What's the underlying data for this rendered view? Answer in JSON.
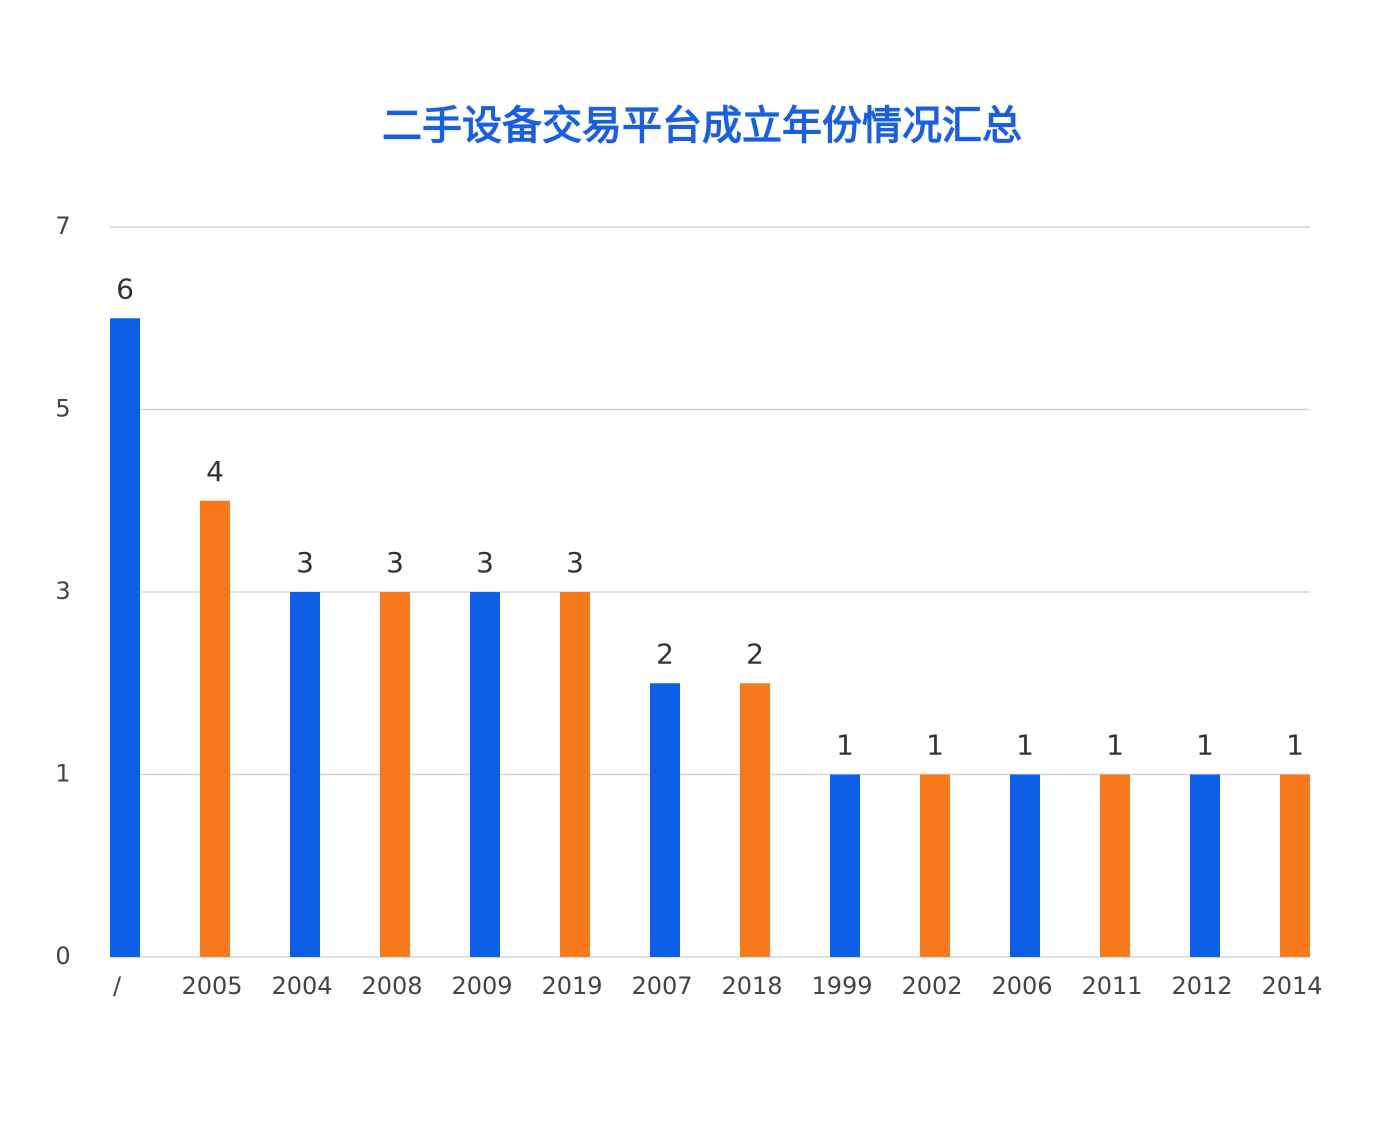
{
  "chart_data": {
    "type": "bar",
    "title": "二手设备交易平台成立年份情况汇总",
    "categories": [
      "/",
      "2005",
      "2004",
      "2008",
      "2009",
      "2019",
      "2007",
      "2018",
      "1999",
      "2002",
      "2006",
      "2011",
      "2012",
      "2014"
    ],
    "values": [
      6,
      4,
      3,
      3,
      3,
      3,
      2,
      2,
      1,
      1,
      1,
      1,
      1,
      1
    ],
    "colors": [
      "#0d5fe8",
      "#f67a1c",
      "#0d5fe8",
      "#f67a1c",
      "#0d5fe8",
      "#f67a1c",
      "#0d5fe8",
      "#f67a1c",
      "#0d5fe8",
      "#f67a1c",
      "#0d5fe8",
      "#f67a1c",
      "#0d5fe8",
      "#f67a1c"
    ],
    "ylim": [
      0,
      7
    ],
    "yticks": [
      0,
      1,
      3,
      5,
      7
    ],
    "grid": true
  }
}
